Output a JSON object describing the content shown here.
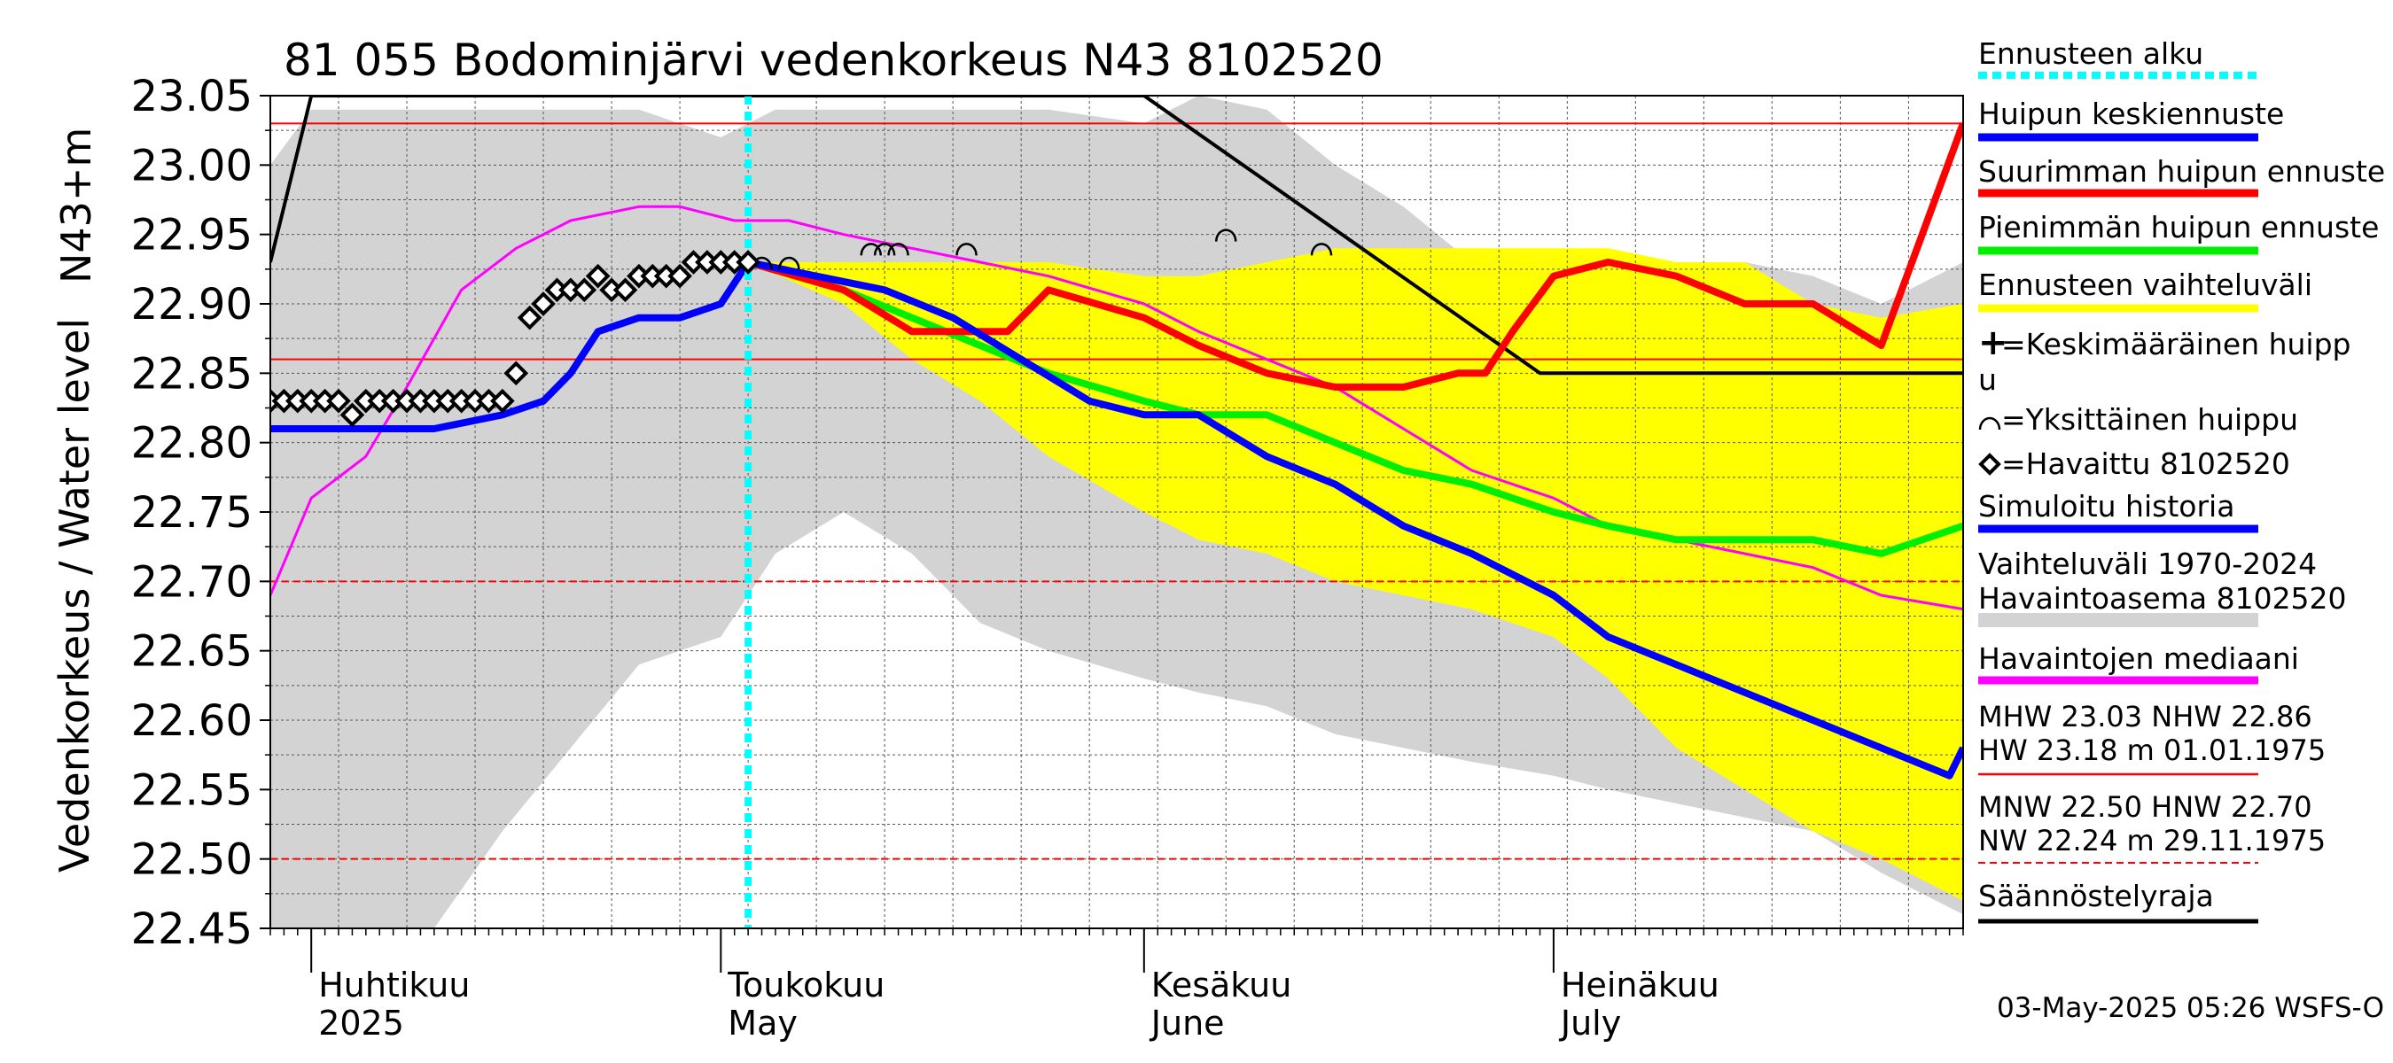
{
  "chart_data": {
    "type": "line",
    "title": "81 055 Bodominjärvi vedenkorkeus N43 8102520",
    "ylabel_unit": "N43+m",
    "ylabel": "Vedenkorkeus / Water level",
    "ylim": [
      22.45,
      23.05
    ],
    "y_ticks": [
      "22.45",
      "22.50",
      "22.55",
      "22.60",
      "22.65",
      "22.70",
      "22.75",
      "22.80",
      "22.85",
      "22.90",
      "22.95",
      "23.00",
      "23.05"
    ],
    "x_range": [
      "2025-03-29",
      "2025-07-31"
    ],
    "x_labels": [
      {
        "line1": "Huhtikuu",
        "line2": "2025"
      },
      {
        "line1": "Toukokuu",
        "line2": "May"
      },
      {
        "line1": "Kesäkuu",
        "line2": "June"
      },
      {
        "line1": "Heinäkuu",
        "line2": "July"
      }
    ],
    "grid": true,
    "reference_lines": [
      {
        "name": "MHW",
        "value": 23.03,
        "style": "solid",
        "color": "#ff0000"
      },
      {
        "name": "NHW",
        "value": 22.86,
        "style": "solid",
        "color": "#ff0000"
      },
      {
        "name": "HNW",
        "value": 22.7,
        "style": "dashed",
        "color": "#ff0000"
      },
      {
        "name": "MNW",
        "value": 22.5,
        "style": "dashed",
        "color": "#ff0000"
      }
    ],
    "forecast_start": "2025-05-03",
    "series": [
      {
        "name": "Vaihteluväli 1970-2024 Havaintoasema 8102520",
        "color": "#d3d3d3",
        "kind": "band",
        "x": [
          "2025-03-29",
          "2025-04-01",
          "2025-04-05",
          "2025-04-10",
          "2025-04-15",
          "2025-04-20",
          "2025-04-25",
          "2025-05-01",
          "2025-05-05",
          "2025-05-10",
          "2025-05-15",
          "2025-05-20",
          "2025-05-25",
          "2025-06-01",
          "2025-06-05",
          "2025-06-10",
          "2025-06-15",
          "2025-06-20",
          "2025-06-25",
          "2025-07-01",
          "2025-07-05",
          "2025-07-10",
          "2025-07-15",
          "2025-07-20",
          "2025-07-25",
          "2025-07-31"
        ],
        "upper": [
          23.0,
          23.04,
          23.04,
          23.04,
          23.04,
          23.04,
          23.04,
          23.02,
          23.04,
          23.04,
          23.04,
          23.04,
          23.04,
          23.03,
          23.05,
          23.04,
          23.0,
          22.97,
          22.93,
          22.89,
          22.94,
          22.88,
          22.93,
          22.92,
          22.9,
          22.93
        ],
        "lower": [
          22.45,
          22.45,
          22.45,
          22.45,
          22.52,
          22.58,
          22.64,
          22.66,
          22.72,
          22.75,
          22.72,
          22.67,
          22.65,
          22.63,
          22.62,
          22.61,
          22.59,
          22.58,
          22.57,
          22.56,
          22.55,
          22.54,
          22.53,
          22.52,
          22.49,
          22.46
        ]
      },
      {
        "name": "Ennusteen vaihteluväli",
        "color": "#ffff00",
        "kind": "band",
        "x": [
          "2025-05-03",
          "2025-05-10",
          "2025-05-15",
          "2025-05-20",
          "2025-05-25",
          "2025-06-01",
          "2025-06-05",
          "2025-06-10",
          "2025-06-15",
          "2025-06-20",
          "2025-06-25",
          "2025-07-01",
          "2025-07-05",
          "2025-07-10",
          "2025-07-15",
          "2025-07-20",
          "2025-07-25",
          "2025-07-31"
        ],
        "upper": [
          22.93,
          22.93,
          22.93,
          22.93,
          22.93,
          22.92,
          22.92,
          22.93,
          22.94,
          22.94,
          22.94,
          22.94,
          22.94,
          22.93,
          22.93,
          22.9,
          22.89,
          22.9
        ],
        "lower": [
          22.93,
          22.9,
          22.86,
          22.83,
          22.79,
          22.75,
          22.73,
          22.72,
          22.7,
          22.69,
          22.68,
          22.66,
          22.63,
          22.58,
          22.55,
          22.52,
          22.5,
          22.47
        ]
      },
      {
        "name": "Havaintojen mediaani",
        "color": "#ff00ff",
        "kind": "line",
        "x": [
          "2025-03-29",
          "2025-04-01",
          "2025-04-05",
          "2025-04-08",
          "2025-04-12",
          "2025-04-16",
          "2025-04-20",
          "2025-04-25",
          "2025-04-28",
          "2025-05-02",
          "2025-05-06",
          "2025-05-10",
          "2025-05-15",
          "2025-05-20",
          "2025-05-25",
          "2025-06-01",
          "2025-06-05",
          "2025-06-10",
          "2025-06-15",
          "2025-06-20",
          "2025-06-25",
          "2025-07-01",
          "2025-07-05",
          "2025-07-10",
          "2025-07-15",
          "2025-07-20",
          "2025-07-25",
          "2025-07-31"
        ],
        "values": [
          22.69,
          22.76,
          22.79,
          22.84,
          22.91,
          22.94,
          22.96,
          22.97,
          22.97,
          22.96,
          22.96,
          22.95,
          22.94,
          22.93,
          22.92,
          22.9,
          22.88,
          22.86,
          22.84,
          22.81,
          22.78,
          22.76,
          22.74,
          22.73,
          22.72,
          22.71,
          22.69,
          22.68
        ]
      },
      {
        "name": "Simuloitu historia",
        "color": "#0000ff",
        "kind": "line",
        "x": [
          "2025-03-29",
          "2025-04-01",
          "2025-04-05",
          "2025-04-10",
          "2025-04-15",
          "2025-04-18",
          "2025-04-20",
          "2025-04-22",
          "2025-04-25",
          "2025-04-28",
          "2025-05-01",
          "2025-05-03"
        ],
        "values": [
          22.81,
          22.81,
          22.81,
          22.81,
          22.82,
          22.83,
          22.85,
          22.88,
          22.89,
          22.89,
          22.9,
          22.93
        ]
      },
      {
        "name": "Huipun keskiennuste",
        "color": "#0000ff",
        "kind": "line",
        "x": [
          "2025-05-03",
          "2025-05-08",
          "2025-05-13",
          "2025-05-18",
          "2025-05-23",
          "2025-05-28",
          "2025-06-01",
          "2025-06-05",
          "2025-06-10",
          "2025-06-15",
          "2025-06-20",
          "2025-06-25",
          "2025-07-01",
          "2025-07-05",
          "2025-07-10",
          "2025-07-15",
          "2025-07-20",
          "2025-07-25",
          "2025-07-30",
          "2025-07-31"
        ],
        "values": [
          22.93,
          22.92,
          22.91,
          22.89,
          22.86,
          22.83,
          22.82,
          22.82,
          22.79,
          22.77,
          22.74,
          22.72,
          22.69,
          22.66,
          22.64,
          22.62,
          22.6,
          22.58,
          22.56,
          22.58
        ]
      },
      {
        "name": "Suurimman huipun ennuste",
        "color": "#ff0000",
        "kind": "line",
        "x": [
          "2025-05-03",
          "2025-05-10",
          "2025-05-15",
          "2025-05-18",
          "2025-05-22",
          "2025-05-25",
          "2025-06-01",
          "2025-06-05",
          "2025-06-10",
          "2025-06-15",
          "2025-06-20",
          "2025-06-24",
          "2025-06-26",
          "2025-06-28",
          "2025-07-01",
          "2025-07-05",
          "2025-07-10",
          "2025-07-15",
          "2025-07-20",
          "2025-07-25",
          "2025-07-28",
          "2025-07-31"
        ],
        "values": [
          22.93,
          22.91,
          22.88,
          22.88,
          22.88,
          22.91,
          22.89,
          22.87,
          22.85,
          22.84,
          22.84,
          22.85,
          22.85,
          22.88,
          22.92,
          22.93,
          22.92,
          22.9,
          22.9,
          22.87,
          22.95,
          23.03
        ]
      },
      {
        "name": "Pienimmän huipun ennuste",
        "color": "#00ee00",
        "kind": "line",
        "x": [
          "2025-05-03",
          "2025-05-10",
          "2025-05-15",
          "2025-05-20",
          "2025-05-25",
          "2025-06-01",
          "2025-06-05",
          "2025-06-10",
          "2025-06-15",
          "2025-06-20",
          "2025-06-25",
          "2025-07-01",
          "2025-07-05",
          "2025-07-10",
          "2025-07-15",
          "2025-07-20",
          "2025-07-25",
          "2025-07-31"
        ],
        "values": [
          22.93,
          22.91,
          22.89,
          22.87,
          22.85,
          22.83,
          22.82,
          22.82,
          22.8,
          22.78,
          22.77,
          22.75,
          22.74,
          22.73,
          22.73,
          22.73,
          22.72,
          22.74
        ]
      },
      {
        "name": "Säännöstelyraja",
        "color": "#000000",
        "kind": "line",
        "x": [
          "2025-03-29",
          "2025-04-01",
          "2025-05-10",
          "2025-06-01",
          "2025-06-30",
          "2025-07-31"
        ],
        "values": [
          22.93,
          23.05,
          23.05,
          23.05,
          22.85,
          22.85
        ]
      },
      {
        "name": "Havaittu 8102520",
        "color": "#000000",
        "kind": "markers",
        "x": [
          "2025-03-29",
          "2025-03-30",
          "2025-03-31",
          "2025-04-01",
          "2025-04-02",
          "2025-04-03",
          "2025-04-04",
          "2025-04-05",
          "2025-04-06",
          "2025-04-07",
          "2025-04-08",
          "2025-04-09",
          "2025-04-10",
          "2025-04-11",
          "2025-04-12",
          "2025-04-13",
          "2025-04-14",
          "2025-04-15",
          "2025-04-16",
          "2025-04-17",
          "2025-04-18",
          "2025-04-19",
          "2025-04-20",
          "2025-04-21",
          "2025-04-22",
          "2025-04-23",
          "2025-04-24",
          "2025-04-25",
          "2025-04-26",
          "2025-04-27",
          "2025-04-28",
          "2025-04-29",
          "2025-04-30",
          "2025-05-01",
          "2025-05-02",
          "2025-05-03"
        ],
        "values": [
          22.83,
          22.83,
          22.83,
          22.83,
          22.83,
          22.83,
          22.82,
          22.83,
          22.83,
          22.83,
          22.83,
          22.83,
          22.83,
          22.83,
          22.83,
          22.83,
          22.83,
          22.83,
          22.85,
          22.89,
          22.9,
          22.91,
          22.91,
          22.91,
          22.92,
          22.91,
          22.91,
          22.92,
          22.92,
          22.92,
          22.92,
          22.93,
          22.93,
          22.93,
          22.93,
          22.93
        ]
      },
      {
        "name": "Yksittäinen huippu",
        "color": "#000000",
        "kind": "markers",
        "x": [
          "2025-05-04",
          "2025-05-06",
          "2025-05-12",
          "2025-05-13",
          "2025-05-14",
          "2025-05-19",
          "2025-06-07",
          "2025-06-14"
        ],
        "values": [
          22.93,
          22.93,
          22.94,
          22.94,
          22.94,
          22.94,
          22.95,
          22.94
        ]
      }
    ],
    "legend": {
      "placement": "right",
      "items": [
        {
          "label": "Ennusteen alku",
          "color": "#00ffff",
          "style": "dotted"
        },
        {
          "label": "Huipun keskiennuste",
          "color": "#0000ff",
          "style": "solid"
        },
        {
          "label": "Suurimman huipun ennuste",
          "color": "#ff0000",
          "style": "solid"
        },
        {
          "label": "Pienimmän huipun ennuste",
          "color": "#00ee00",
          "style": "solid"
        },
        {
          "label": "Ennusteen vaihteluväli",
          "color": "#ffff00",
          "style": "solid"
        },
        {
          "label": "=Keskimääräinen huipp",
          "label2": "u",
          "color": "#000000",
          "style": "plus"
        },
        {
          "label": "=Yksittäinen huippu",
          "color": "#000000",
          "style": "arc"
        },
        {
          "label": "=Havaittu 8102520",
          "color": "#000000",
          "style": "diamond"
        },
        {
          "label": "Simuloitu historia",
          "color": "#0000ff",
          "style": "solid"
        },
        {
          "label": "Vaihteluväli 1970-2024",
          "label2": " Havaintoasema 8102520",
          "color": "#d3d3d3",
          "style": "solid"
        },
        {
          "label": "Havaintojen mediaani",
          "color": "#ff00ff",
          "style": "solid"
        }
      ],
      "stats": [
        {
          "line1": "MHW   23.03 NHW  22.86",
          "line2": "HW  23.18 m 01.01.1975"
        },
        {
          "line1": "MNW  22.50 HNW  22.70",
          "line2": "NW  22.24 m 29.11.1975"
        }
      ],
      "last_item": {
        "label": "Säännöstelyraja",
        "color": "#000000"
      }
    },
    "footer": "03-May-2025 05:26 WSFS-O"
  }
}
